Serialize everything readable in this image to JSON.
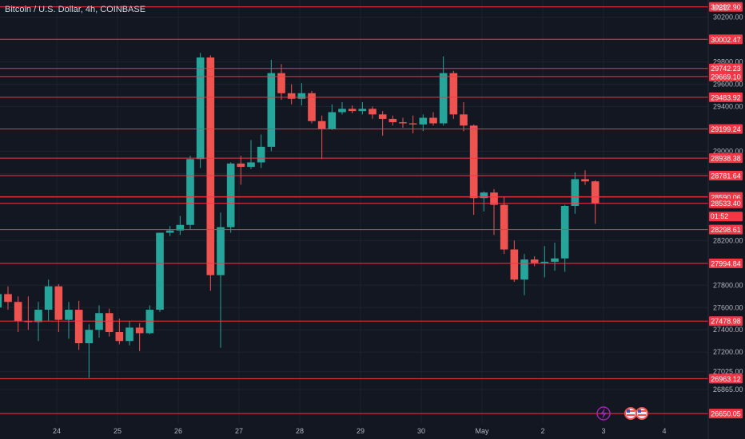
{
  "header": {
    "title": "Bitcoin / U.S. Dollar, 4h, COINBASE",
    "currency": "USD"
  },
  "colors": {
    "background": "#131722",
    "grid": "#1e222d",
    "up": "#26a69a",
    "down": "#ef5350",
    "level_line": "#f23645",
    "text": "#b2b5be",
    "badge_text": "#ffffff"
  },
  "icons": {
    "lightning": "lightning-icon",
    "flags": "us-flag-icon"
  },
  "chart_data": {
    "type": "candlestick",
    "title": "Bitcoin / U.S. Dollar, 4h, COINBASE",
    "xlabel": "",
    "ylabel": "",
    "ylim": [
      26565,
      30355
    ],
    "grid": true,
    "x_ticks": [
      "24",
      "25",
      "26",
      "27",
      "28",
      "29",
      "30",
      "May",
      "2",
      "3",
      "4"
    ],
    "y_ticks": [
      "30200.00",
      "29800.00",
      "29600.00",
      "29400.00",
      "29000.00",
      "28800.00",
      "28600.00",
      "28200.00",
      "27800.00",
      "27600.00",
      "27400.00",
      "27200.00",
      "27025.00",
      "26865.00"
    ],
    "levels": [
      "30292.90",
      "30002.47",
      "29742.23",
      "29669.10",
      "29483.92",
      "29199.24",
      "28938.38",
      "28781.64",
      "28590.37",
      "28590.06",
      "28533.40",
      "28298.61",
      "27994.84",
      "27478.98",
      "26963.12",
      "26650.05"
    ],
    "countdown": "01:52",
    "candles": [
      {
        "o": 27600,
        "h": 27760,
        "l": 27450,
        "c": 27720
      },
      {
        "o": 27720,
        "h": 27790,
        "l": 27580,
        "c": 27650
      },
      {
        "o": 27650,
        "h": 27700,
        "l": 27380,
        "c": 27480
      },
      {
        "o": 27480,
        "h": 27700,
        "l": 27400,
        "c": 27470
      },
      {
        "o": 27470,
        "h": 27650,
        "l": 27300,
        "c": 27580
      },
      {
        "o": 27580,
        "h": 27850,
        "l": 27480,
        "c": 27790
      },
      {
        "o": 27790,
        "h": 27810,
        "l": 27380,
        "c": 27490
      },
      {
        "o": 27490,
        "h": 27650,
        "l": 27320,
        "c": 27580
      },
      {
        "o": 27580,
        "h": 27660,
        "l": 27220,
        "c": 27280
      },
      {
        "o": 27280,
        "h": 27450,
        "l": 26970,
        "c": 27400
      },
      {
        "o": 27400,
        "h": 27620,
        "l": 27330,
        "c": 27550
      },
      {
        "o": 27550,
        "h": 27590,
        "l": 27340,
        "c": 27380
      },
      {
        "o": 27380,
        "h": 27500,
        "l": 27270,
        "c": 27300
      },
      {
        "o": 27300,
        "h": 27480,
        "l": 27260,
        "c": 27420
      },
      {
        "o": 27420,
        "h": 27460,
        "l": 27210,
        "c": 27370
      },
      {
        "o": 27370,
        "h": 27620,
        "l": 27360,
        "c": 27580
      },
      {
        "o": 27580,
        "h": 28270,
        "l": 27560,
        "c": 28270
      },
      {
        "o": 28270,
        "h": 28330,
        "l": 28240,
        "c": 28290
      },
      {
        "o": 28290,
        "h": 28420,
        "l": 28250,
        "c": 28340
      },
      {
        "o": 28340,
        "h": 28960,
        "l": 28300,
        "c": 28930
      },
      {
        "o": 28930,
        "h": 29880,
        "l": 28850,
        "c": 29840
      },
      {
        "o": 29840,
        "h": 29860,
        "l": 27750,
        "c": 27890
      },
      {
        "o": 27890,
        "h": 28450,
        "l": 27240,
        "c": 28320
      },
      {
        "o": 28320,
        "h": 28900,
        "l": 28270,
        "c": 28890
      },
      {
        "o": 28890,
        "h": 28960,
        "l": 28700,
        "c": 28860
      },
      {
        "o": 28860,
        "h": 29100,
        "l": 28840,
        "c": 28900
      },
      {
        "o": 28900,
        "h": 29150,
        "l": 28850,
        "c": 29040
      },
      {
        "o": 29040,
        "h": 29820,
        "l": 29000,
        "c": 29700
      },
      {
        "o": 29700,
        "h": 29780,
        "l": 29460,
        "c": 29520
      },
      {
        "o": 29520,
        "h": 29600,
        "l": 29420,
        "c": 29470
      },
      {
        "o": 29470,
        "h": 29610,
        "l": 29410,
        "c": 29520
      },
      {
        "o": 29520,
        "h": 29540,
        "l": 29250,
        "c": 29270
      },
      {
        "o": 29270,
        "h": 29320,
        "l": 28930,
        "c": 29200
      },
      {
        "o": 29200,
        "h": 29420,
        "l": 29190,
        "c": 29350
      },
      {
        "o": 29350,
        "h": 29440,
        "l": 29330,
        "c": 29380
      },
      {
        "o": 29380,
        "h": 29410,
        "l": 29340,
        "c": 29360
      },
      {
        "o": 29360,
        "h": 29440,
        "l": 29330,
        "c": 29380
      },
      {
        "o": 29380,
        "h": 29400,
        "l": 29290,
        "c": 29330
      },
      {
        "o": 29330,
        "h": 29360,
        "l": 29140,
        "c": 29290
      },
      {
        "o": 29290,
        "h": 29320,
        "l": 29230,
        "c": 29260
      },
      {
        "o": 29260,
        "h": 29300,
        "l": 29210,
        "c": 29250
      },
      {
        "o": 29250,
        "h": 29320,
        "l": 29160,
        "c": 29240
      },
      {
        "o": 29240,
        "h": 29330,
        "l": 29180,
        "c": 29300
      },
      {
        "o": 29300,
        "h": 29350,
        "l": 29230,
        "c": 29250
      },
      {
        "o": 29250,
        "h": 29850,
        "l": 29230,
        "c": 29700
      },
      {
        "o": 29700,
        "h": 29720,
        "l": 29290,
        "c": 29330
      },
      {
        "o": 29330,
        "h": 29440,
        "l": 29180,
        "c": 29230
      },
      {
        "o": 29230,
        "h": 29240,
        "l": 28430,
        "c": 28580
      },
      {
        "o": 28580,
        "h": 28640,
        "l": 28460,
        "c": 28630
      },
      {
        "o": 28630,
        "h": 28660,
        "l": 28250,
        "c": 28520
      },
      {
        "o": 28520,
        "h": 28590,
        "l": 28080,
        "c": 28120
      },
      {
        "o": 28120,
        "h": 28200,
        "l": 27830,
        "c": 27850
      },
      {
        "o": 27850,
        "h": 28080,
        "l": 27710,
        "c": 28030
      },
      {
        "o": 28030,
        "h": 28060,
        "l": 27970,
        "c": 28000
      },
      {
        "o": 28000,
        "h": 28150,
        "l": 27870,
        "c": 28010
      },
      {
        "o": 28010,
        "h": 28180,
        "l": 27930,
        "c": 28040
      },
      {
        "o": 28040,
        "h": 28520,
        "l": 27920,
        "c": 28510
      },
      {
        "o": 28510,
        "h": 28810,
        "l": 28440,
        "c": 28750
      },
      {
        "o": 28750,
        "h": 28830,
        "l": 28700,
        "c": 28730
      },
      {
        "o": 28730,
        "h": 28740,
        "l": 28350,
        "c": 28530
      }
    ]
  }
}
